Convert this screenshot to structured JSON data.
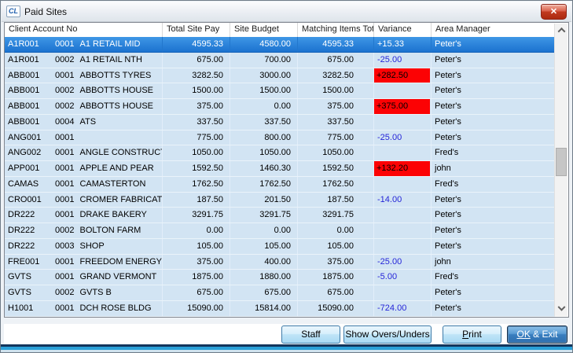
{
  "window": {
    "title": "Paid Sites",
    "icon_text": "CL",
    "close_icon": "✕"
  },
  "table": {
    "columns": [
      "Client Account No",
      "Total Site Pay",
      "Site Budget",
      "Matching Items Total",
      "Variance",
      "Area Manager"
    ],
    "rows": [
      {
        "account": "A1R001",
        "site": "0001",
        "name": "A1 RETAIL MID",
        "total_site_pay": "4595.33",
        "site_budget": "4580.00",
        "matching_items_total": "4595.33",
        "variance": "+15.33",
        "variance_style": "plain",
        "manager": "Peter's",
        "selected": true
      },
      {
        "account": "A1R001",
        "site": "0002",
        "name": "A1 RETAIL NTH",
        "total_site_pay": "675.00",
        "site_budget": "700.00",
        "matching_items_total": "675.00",
        "variance": "-25.00",
        "variance_style": "under",
        "manager": "Peter's",
        "selected": false
      },
      {
        "account": "ABB001",
        "site": "0001",
        "name": "ABBOTTS TYRES",
        "total_site_pay": "3282.50",
        "site_budget": "3000.00",
        "matching_items_total": "3282.50",
        "variance": "+282.50",
        "variance_style": "over",
        "manager": "Peter's",
        "selected": false
      },
      {
        "account": "ABB001",
        "site": "0002",
        "name": "ABBOTTS HOUSE",
        "total_site_pay": "1500.00",
        "site_budget": "1500.00",
        "matching_items_total": "1500.00",
        "variance": "",
        "variance_style": "none",
        "manager": "Peter's",
        "selected": false
      },
      {
        "account": "ABB001",
        "site": "0002",
        "name": "ABBOTTS HOUSE",
        "total_site_pay": "375.00",
        "site_budget": "0.00",
        "matching_items_total": "375.00",
        "variance": "+375.00",
        "variance_style": "over",
        "manager": "Peter's",
        "selected": false
      },
      {
        "account": "ABB001",
        "site": "0004",
        "name": "ATS",
        "total_site_pay": "337.50",
        "site_budget": "337.50",
        "matching_items_total": "337.50",
        "variance": "",
        "variance_style": "none",
        "manager": "Peter's",
        "selected": false
      },
      {
        "account": "ANG001",
        "site": "0001",
        "name": "",
        "total_site_pay": "775.00",
        "site_budget": "800.00",
        "matching_items_total": "775.00",
        "variance": "-25.00",
        "variance_style": "under",
        "manager": "Peter's",
        "selected": false
      },
      {
        "account": "ANG002",
        "site": "0001",
        "name": "ANGLE CONSTRUCT",
        "total_site_pay": "1050.00",
        "site_budget": "1050.00",
        "matching_items_total": "1050.00",
        "variance": "",
        "variance_style": "none",
        "manager": "Fred's",
        "selected": false
      },
      {
        "account": "APP001",
        "site": "0001",
        "name": "APPLE AND PEAR",
        "total_site_pay": "1592.50",
        "site_budget": "1460.30",
        "matching_items_total": "1592.50",
        "variance": "+132.20",
        "variance_style": "over",
        "manager": "john",
        "selected": false
      },
      {
        "account": "CAMAS",
        "site": "0001",
        "name": "CAMASTERTON",
        "total_site_pay": "1762.50",
        "site_budget": "1762.50",
        "matching_items_total": "1762.50",
        "variance": "",
        "variance_style": "none",
        "manager": "Fred's",
        "selected": false
      },
      {
        "account": "CRO001",
        "site": "0001",
        "name": "CROMER FABRICAT",
        "total_site_pay": "187.50",
        "site_budget": "201.50",
        "matching_items_total": "187.50",
        "variance": "-14.00",
        "variance_style": "under",
        "manager": "Peter's",
        "selected": false
      },
      {
        "account": "DR222",
        "site": "0001",
        "name": "DRAKE BAKERY",
        "total_site_pay": "3291.75",
        "site_budget": "3291.75",
        "matching_items_total": "3291.75",
        "variance": "",
        "variance_style": "none",
        "manager": "Peter's",
        "selected": false
      },
      {
        "account": "DR222",
        "site": "0002",
        "name": "BOLTON FARM",
        "total_site_pay": "0.00",
        "site_budget": "0.00",
        "matching_items_total": "0.00",
        "variance": "",
        "variance_style": "none",
        "manager": "Peter's",
        "selected": false
      },
      {
        "account": "DR222",
        "site": "0003",
        "name": "SHOP",
        "total_site_pay": "105.00",
        "site_budget": "105.00",
        "matching_items_total": "105.00",
        "variance": "",
        "variance_style": "none",
        "manager": "Peter's",
        "selected": false
      },
      {
        "account": "FRE001",
        "site": "0001",
        "name": "FREEDOM ENERGY",
        "total_site_pay": "375.00",
        "site_budget": "400.00",
        "matching_items_total": "375.00",
        "variance": "-25.00",
        "variance_style": "under",
        "manager": "john",
        "selected": false
      },
      {
        "account": "GVTS",
        "site": "0001",
        "name": "GRAND VERMONT",
        "total_site_pay": "1875.00",
        "site_budget": "1880.00",
        "matching_items_total": "1875.00",
        "variance": "-5.00",
        "variance_style": "under",
        "manager": "Fred's",
        "selected": false
      },
      {
        "account": "GVTS",
        "site": "0002",
        "name": "GVTS B",
        "total_site_pay": "675.00",
        "site_budget": "675.00",
        "matching_items_total": "675.00",
        "variance": "",
        "variance_style": "none",
        "manager": "Peter's",
        "selected": false
      },
      {
        "account": "H1001",
        "site": "0001",
        "name": "DCH ROSE BLDG",
        "total_site_pay": "15090.00",
        "site_budget": "15814.00",
        "matching_items_total": "15090.00",
        "variance": "-724.00",
        "variance_style": "under",
        "manager": "Peter's",
        "selected": false
      }
    ]
  },
  "buttons": [
    {
      "label": "Staff",
      "underline": ""
    },
    {
      "label": "Show Overs/Unders",
      "underline": ""
    },
    {
      "label": "Print",
      "underline": "P"
    },
    {
      "label": "OK & Exit",
      "underline": "OK"
    }
  ],
  "colors": {
    "row_bg": "#d2e4f3",
    "selected_bg": "#1b72cf",
    "variance_over_bg": "#fc0204",
    "variance_under_text": "#2525d8",
    "close_button": "#c03a20",
    "button_face": "#bfe4f7"
  },
  "icons": {
    "window_icon": "app-logo",
    "close_icon": "close-x",
    "scroll_up_icon": "chevron-up",
    "scroll_down_icon": "chevron-down"
  }
}
